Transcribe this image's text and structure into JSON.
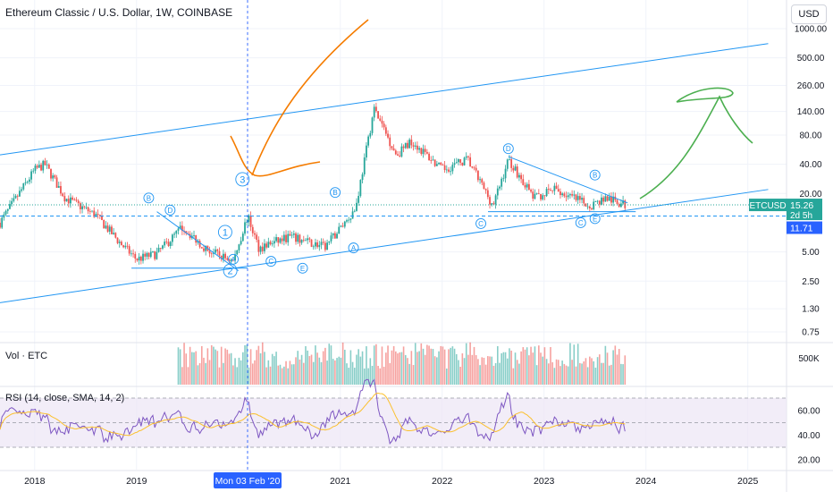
{
  "header": {
    "title": "Ethereum Classic / U.S. Dollar, 1W, COINBASE",
    "currency_button": "USD"
  },
  "colors": {
    "up": "#26a69a",
    "down": "#ef5350",
    "trendline": "#2196f3",
    "price_tag": "#2962ff",
    "rsi_line": "#7e57c2",
    "rsi_band": "#ede7f6",
    "rsi_ma": "#fbc02d",
    "orange_drawing": "#f57c00",
    "green_drawing": "#4caf50"
  },
  "chart_data": [
    {
      "type": "candlestick",
      "title": "Ethereum Classic / U.S. Dollar, 1W, COINBASE",
      "y_scale": "log",
      "y_ticks": [
        "1000.00",
        "500.00",
        "260.00",
        "140.00",
        "80.00",
        "40.00",
        "20.00",
        "5.00",
        "2.50",
        "1.30",
        "0.75"
      ],
      "y_tick_values": [
        1000,
        500,
        260,
        140,
        80,
        40,
        20,
        5,
        2.5,
        1.3,
        0.75
      ],
      "x_ticks": [
        "2018",
        "2019",
        "Mon 03 Feb '20",
        "2021",
        "2022",
        "2023",
        "2024",
        "2025"
      ],
      "x_tick_values": [
        2018.0,
        2019.0,
        2020.09,
        2021.0,
        2022.0,
        2023.0,
        2024.0,
        2025.0
      ],
      "crosshair_x": "Mon 03 Feb '20",
      "symbol": "ETCUSD",
      "last_price": "15.26",
      "countdown": "2d 5h",
      "crosshair_price": "11.71",
      "approx_path": [
        {
          "t": 2017.66,
          "price": 10
        },
        {
          "t": 2018.0,
          "price": 35
        },
        {
          "t": 2018.1,
          "price": 40
        },
        {
          "t": 2018.3,
          "price": 18
        },
        {
          "t": 2018.6,
          "price": 12
        },
        {
          "t": 2018.85,
          "price": 6
        },
        {
          "t": 2019.0,
          "price": 4.2
        },
        {
          "t": 2019.2,
          "price": 4.8
        },
        {
          "t": 2019.45,
          "price": 9
        },
        {
          "t": 2019.7,
          "price": 5.2
        },
        {
          "t": 2019.95,
          "price": 4.0
        },
        {
          "t": 2020.09,
          "price": 11.7
        },
        {
          "t": 2020.2,
          "price": 5.5
        },
        {
          "t": 2020.5,
          "price": 7.2
        },
        {
          "t": 2020.85,
          "price": 5.6
        },
        {
          "t": 2021.15,
          "price": 14
        },
        {
          "t": 2021.33,
          "price": 150
        },
        {
          "t": 2021.55,
          "price": 50
        },
        {
          "t": 2021.7,
          "price": 70
        },
        {
          "t": 2022.0,
          "price": 35
        },
        {
          "t": 2022.25,
          "price": 45
        },
        {
          "t": 2022.5,
          "price": 15
        },
        {
          "t": 2022.65,
          "price": 45
        },
        {
          "t": 2022.9,
          "price": 18
        },
        {
          "t": 2023.1,
          "price": 22
        },
        {
          "t": 2023.45,
          "price": 15
        },
        {
          "t": 2023.6,
          "price": 18
        },
        {
          "t": 2023.8,
          "price": 15.26
        }
      ]
    },
    {
      "type": "bar",
      "title": "Vol · ETC",
      "y_ticks": [
        "500K"
      ]
    },
    {
      "type": "line",
      "title": "RSI (14, close, SMA, 14, 2)",
      "y_ticks": [
        "60.00",
        "40.00",
        "20.00"
      ],
      "y_tick_values": [
        60,
        40,
        20
      ],
      "band": [
        30,
        70
      ]
    }
  ],
  "annotations": {
    "wave_labels": [
      "B",
      "D",
      "A",
      "C",
      "E",
      "B",
      "A",
      "C",
      "D",
      "C",
      "E",
      "B",
      "3",
      "1",
      "2"
    ]
  }
}
